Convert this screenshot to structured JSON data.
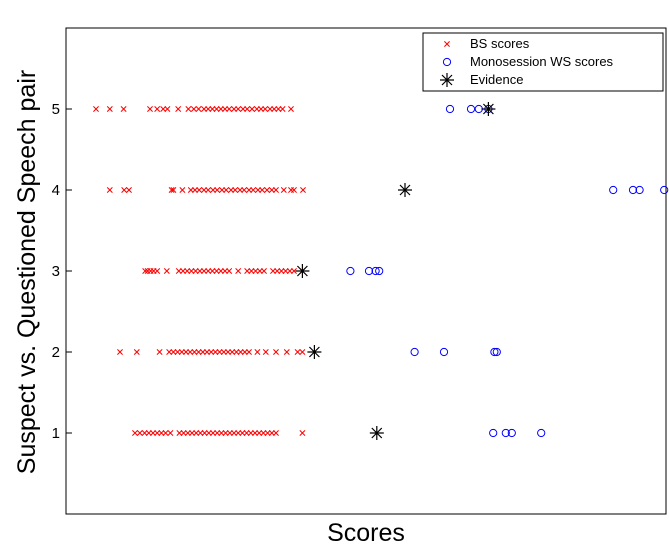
{
  "chart_data": {
    "type": "scatter",
    "xlabel": "Scores",
    "ylabel": "Suspect vs. Questioned Speech pair",
    "ylim": [
      0,
      6
    ],
    "yticks": [
      1,
      2,
      3,
      4,
      5
    ],
    "xlim": [
      0,
      100
    ],
    "xticks_shown": false,
    "grid": false,
    "legend_position": "top-right",
    "series": [
      {
        "name": "BS scores",
        "marker": "x",
        "color": "#ff0000",
        "points": [
          [
            5,
            5
          ],
          [
            7.3,
            5
          ],
          [
            9.6,
            5
          ],
          [
            14,
            5
          ],
          [
            15.2,
            5
          ],
          [
            16.2,
            5
          ],
          [
            16.9,
            5
          ],
          [
            18.7,
            5
          ],
          [
            20.4,
            5
          ],
          [
            21.3,
            5
          ],
          [
            22.1,
            5
          ],
          [
            23,
            5
          ],
          [
            23.7,
            5
          ],
          [
            24.4,
            5
          ],
          [
            25.1,
            5
          ],
          [
            25.8,
            5
          ],
          [
            26.5,
            5
          ],
          [
            27.2,
            5
          ],
          [
            28,
            5
          ],
          [
            28.7,
            5
          ],
          [
            29.5,
            5
          ],
          [
            30.2,
            5
          ],
          [
            31,
            5
          ],
          [
            31.8,
            5
          ],
          [
            32.5,
            5
          ],
          [
            33.2,
            5
          ],
          [
            34,
            5
          ],
          [
            34.7,
            5
          ],
          [
            35.4,
            5
          ],
          [
            36.1,
            5
          ],
          [
            37.5,
            5
          ],
          [
            7.3,
            4
          ],
          [
            9.7,
            4
          ],
          [
            10.5,
            4
          ],
          [
            17.6,
            4
          ],
          [
            17.9,
            4
          ],
          [
            19.4,
            4
          ],
          [
            20.8,
            4
          ],
          [
            21.5,
            4
          ],
          [
            22.2,
            4
          ],
          [
            23,
            4
          ],
          [
            23.7,
            4
          ],
          [
            24.5,
            4
          ],
          [
            25.2,
            4
          ],
          [
            26,
            4
          ],
          [
            26.7,
            4
          ],
          [
            27.5,
            4
          ],
          [
            28.2,
            4
          ],
          [
            29,
            4
          ],
          [
            29.7,
            4
          ],
          [
            30.5,
            4
          ],
          [
            31.2,
            4
          ],
          [
            32,
            4
          ],
          [
            32.7,
            4
          ],
          [
            33.5,
            4
          ],
          [
            34.3,
            4
          ],
          [
            35,
            4
          ],
          [
            36.3,
            4
          ],
          [
            37.5,
            4
          ],
          [
            38,
            4
          ],
          [
            39.5,
            4
          ],
          [
            13.2,
            3
          ],
          [
            13.6,
            3
          ],
          [
            14.1,
            3
          ],
          [
            14.6,
            3
          ],
          [
            15.2,
            3
          ],
          [
            16.8,
            3
          ],
          [
            18.8,
            3
          ],
          [
            19.5,
            3
          ],
          [
            20.2,
            3
          ],
          [
            20.9,
            3
          ],
          [
            21.6,
            3
          ],
          [
            22.3,
            3
          ],
          [
            23,
            3
          ],
          [
            23.7,
            3
          ],
          [
            24.4,
            3
          ],
          [
            25.1,
            3
          ],
          [
            25.8,
            3
          ],
          [
            26.5,
            3
          ],
          [
            27.2,
            3
          ],
          [
            28.7,
            3
          ],
          [
            30.2,
            3
          ],
          [
            30.9,
            3
          ],
          [
            31.6,
            3
          ],
          [
            32.3,
            3
          ],
          [
            33,
            3
          ],
          [
            34.5,
            3
          ],
          [
            35.2,
            3
          ],
          [
            35.9,
            3
          ],
          [
            36.6,
            3
          ],
          [
            37.3,
            3
          ],
          [
            38,
            3
          ],
          [
            39.4,
            3
          ],
          [
            9,
            2
          ],
          [
            11.8,
            2
          ],
          [
            15.6,
            2
          ],
          [
            17.2,
            2
          ],
          [
            17.9,
            2
          ],
          [
            18.6,
            2
          ],
          [
            19.3,
            2
          ],
          [
            20,
            2
          ],
          [
            20.7,
            2
          ],
          [
            21.4,
            2
          ],
          [
            22.1,
            2
          ],
          [
            22.8,
            2
          ],
          [
            23.5,
            2
          ],
          [
            24.2,
            2
          ],
          [
            24.9,
            2
          ],
          [
            25.6,
            2
          ],
          [
            26.3,
            2
          ],
          [
            27,
            2
          ],
          [
            27.7,
            2
          ],
          [
            28.4,
            2
          ],
          [
            29.1,
            2
          ],
          [
            29.8,
            2
          ],
          [
            30.5,
            2
          ],
          [
            31.9,
            2
          ],
          [
            33.3,
            2
          ],
          [
            35,
            2
          ],
          [
            36.8,
            2
          ],
          [
            38.6,
            2
          ],
          [
            39.4,
            2
          ],
          [
            11.5,
            1
          ],
          [
            12.3,
            1
          ],
          [
            13.1,
            1
          ],
          [
            13.8,
            1
          ],
          [
            14.5,
            1
          ],
          [
            15.2,
            1
          ],
          [
            15.9,
            1
          ],
          [
            16.6,
            1
          ],
          [
            17.4,
            1
          ],
          [
            18.9,
            1
          ],
          [
            19.6,
            1
          ],
          [
            20.3,
            1
          ],
          [
            21,
            1
          ],
          [
            21.7,
            1
          ],
          [
            22.4,
            1
          ],
          [
            23.1,
            1
          ],
          [
            23.8,
            1
          ],
          [
            24.5,
            1
          ],
          [
            25.2,
            1
          ],
          [
            25.9,
            1
          ],
          [
            26.6,
            1
          ],
          [
            27.3,
            1
          ],
          [
            28,
            1
          ],
          [
            28.7,
            1
          ],
          [
            29.4,
            1
          ],
          [
            30.1,
            1
          ],
          [
            30.8,
            1
          ],
          [
            31.5,
            1
          ],
          [
            32.2,
            1
          ],
          [
            32.9,
            1
          ],
          [
            33.6,
            1
          ],
          [
            34.3,
            1
          ],
          [
            35,
            1
          ],
          [
            39.4,
            1
          ]
        ]
      },
      {
        "name": "Monosession WS scores",
        "marker": "o",
        "color": "#0000ff",
        "points": [
          [
            64,
            5
          ],
          [
            67.5,
            5
          ],
          [
            68.8,
            5
          ],
          [
            70.4,
            5
          ],
          [
            91.2,
            4
          ],
          [
            94.5,
            4
          ],
          [
            95.6,
            4
          ],
          [
            99.7,
            4
          ],
          [
            47.4,
            3
          ],
          [
            50.5,
            3
          ],
          [
            51.6,
            3
          ],
          [
            52.2,
            3
          ],
          [
            58.1,
            2
          ],
          [
            63,
            2
          ],
          [
            71.4,
            2
          ],
          [
            71.8,
            2
          ],
          [
            71.2,
            1
          ],
          [
            73.3,
            1
          ],
          [
            74.3,
            1
          ],
          [
            79.2,
            1
          ]
        ]
      },
      {
        "name": "Evidence",
        "marker": "asterisk",
        "color": "#000000",
        "points": [
          [
            70.4,
            5
          ],
          [
            56.5,
            4
          ],
          [
            39.4,
            3
          ],
          [
            41.4,
            2
          ],
          [
            51.8,
            1
          ]
        ]
      }
    ]
  }
}
